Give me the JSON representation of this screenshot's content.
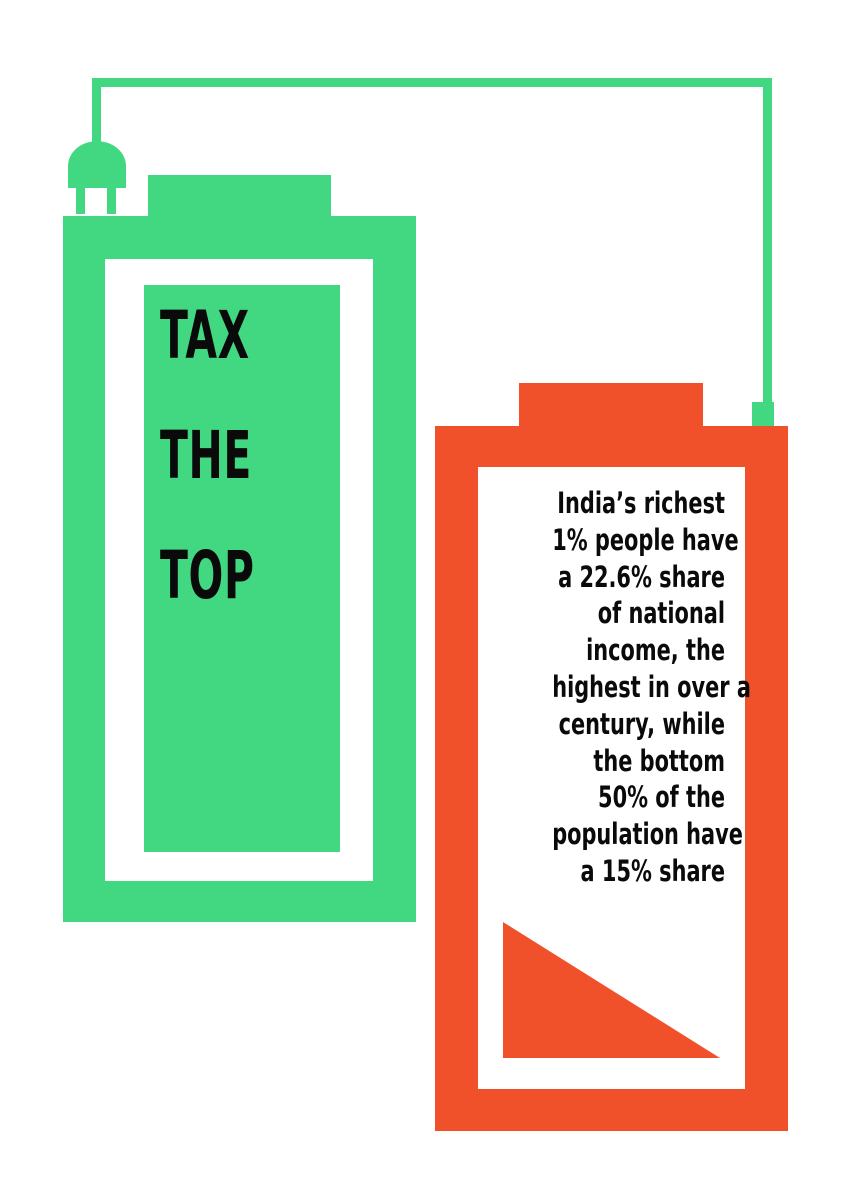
{
  "colors": {
    "green": "#42d882",
    "orange": "#f0512a",
    "ink": "#0a0a0a"
  },
  "icons": {
    "plug": "plug-icon"
  },
  "title": {
    "lines": [
      "TAX",
      "THE",
      "TOP"
    ]
  },
  "body": {
    "lines": [
      "India’s richest",
      "1% people have",
      "a 22.6% share",
      "of national",
      "income, the",
      "highest in over a",
      "century, while",
      "the bottom",
      "50% of the",
      "population have",
      "a 15% share"
    ]
  }
}
